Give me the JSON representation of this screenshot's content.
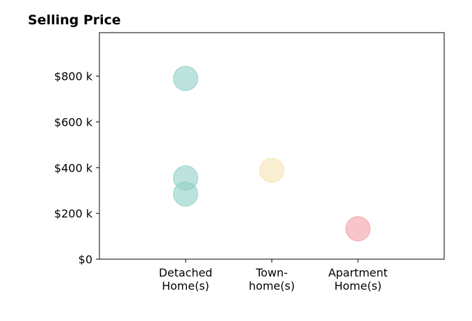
{
  "chart_data": {
    "type": "scatter",
    "title": "Selling Price",
    "xlabel": "",
    "ylabel": "",
    "categories": [
      [
        "Detached",
        "Home(s)"
      ],
      [
        "Town-",
        "home(s)"
      ],
      [
        "Apartment",
        "Home(s)"
      ]
    ],
    "ylim": [
      0,
      990000
    ],
    "yticks": [
      {
        "value": 0,
        "label": "$0"
      },
      {
        "value": 200000,
        "label": "$200 k"
      },
      {
        "value": 400000,
        "label": "$400 k"
      },
      {
        "value": 600000,
        "label": "$600 k"
      },
      {
        "value": 800000,
        "label": "$800 k"
      }
    ],
    "grid": false,
    "legend": "none",
    "points": [
      {
        "category": 0,
        "value": 790000,
        "color": "#8fd0c6"
      },
      {
        "category": 0,
        "value": 355000,
        "color": "#8fd0c6"
      },
      {
        "category": 0,
        "value": 285000,
        "color": "#8fd0c6"
      },
      {
        "category": 1,
        "value": 388000,
        "color": "#f7e3b4"
      },
      {
        "category": 2,
        "value": 133000,
        "color": "#f49ea7"
      }
    ],
    "marker_opacity": 0.6
  }
}
